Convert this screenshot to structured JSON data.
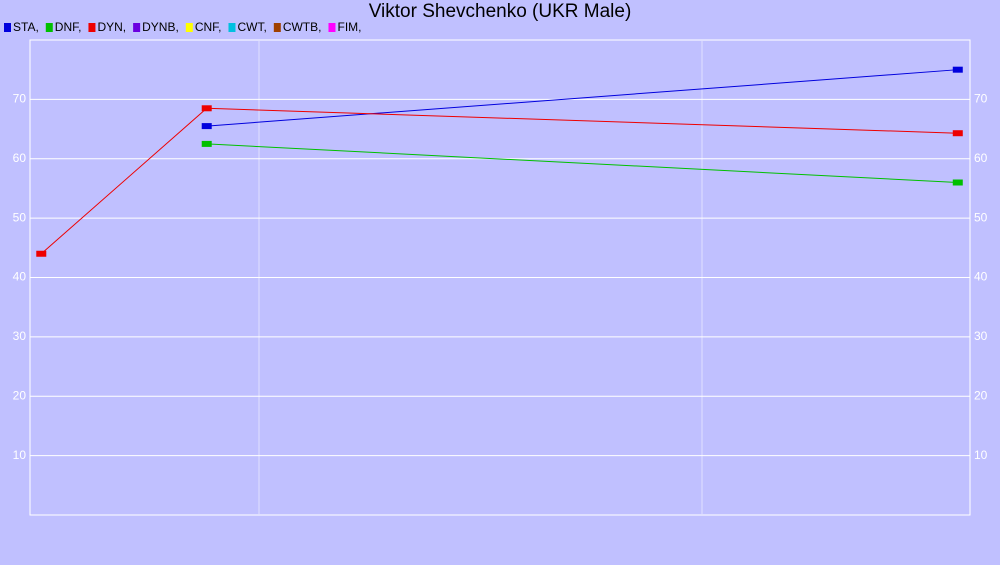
{
  "chart_data": {
    "type": "line",
    "title": "Viktor Shevchenko (UKR Male)",
    "x": [
      1.2,
      18.8,
      98.7
    ],
    "xlim": [
      0,
      100
    ],
    "series": [
      {
        "name": "STA,",
        "color": "#0000dd",
        "values": [
          null,
          65.5,
          75
        ]
      },
      {
        "name": "DNF,",
        "color": "#00c000",
        "values": [
          null,
          62.5,
          56
        ]
      },
      {
        "name": "DYN,",
        "color": "#ee0000",
        "values": [
          44,
          68.5,
          64.3
        ]
      },
      {
        "name": "DYNB,",
        "color": "#6a00e0",
        "values": [
          null,
          null,
          null
        ]
      },
      {
        "name": "CNF,",
        "color": "#ffff00",
        "values": [
          null,
          null,
          null
        ]
      },
      {
        "name": "CWT,",
        "color": "#00c0e0",
        "values": [
          null,
          null,
          null
        ]
      },
      {
        "name": "CWTB,",
        "color": "#a04000",
        "values": [
          null,
          null,
          null
        ]
      },
      {
        "name": "FIM,",
        "color": "#ff00ff",
        "values": [
          null,
          null,
          null
        ]
      }
    ],
    "ylim": [
      0,
      80
    ],
    "yticks": [
      10,
      20,
      30,
      40,
      50,
      60,
      70
    ],
    "grid": true
  }
}
